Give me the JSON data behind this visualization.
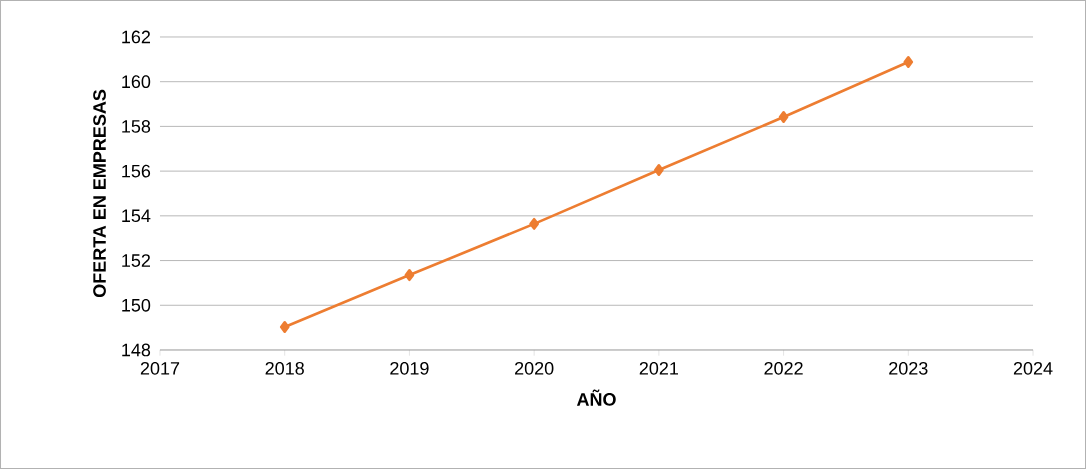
{
  "chart_data": {
    "type": "line",
    "xlabel": "AÑO",
    "ylabel": "OFERTA EN EMPRESAS",
    "x": [
      2018,
      2019,
      2020,
      2021,
      2022,
      2023
    ],
    "series": [
      {
        "color": "#ed7d31",
        "values": [
          149.03,
          151.35,
          153.64,
          156.05,
          158.42,
          160.88
        ]
      }
    ],
    "xlim": [
      2017,
      2024
    ],
    "xticks": [
      2017,
      2018,
      2019,
      2020,
      2021,
      2022,
      2023,
      2024
    ],
    "ylim": [
      148,
      162
    ],
    "yticks": [
      148,
      150,
      152,
      154,
      156,
      158,
      160,
      162
    ],
    "grid": "y",
    "marker": "diamond",
    "line_style": "solid"
  }
}
